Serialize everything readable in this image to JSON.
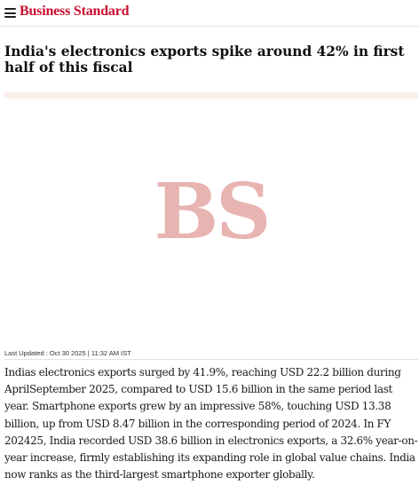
{
  "header": {
    "logo_text": "Business Standard",
    "menu_icon": "hamburger-menu-icon"
  },
  "article": {
    "headline": "India's electronics exports spike around 42% in first half of this fiscal",
    "image_placeholder": "BS",
    "last_updated": "Last Updated : Oct 30 2025 | 11:32 AM IST",
    "body": "Indias electronics exports surged by 41.9%, reaching USD 22.2 billion during AprilSeptember 2025, compared to USD 15.6 billion in the same period last year. Smartphone exports grew by an impressive 58%, touching USD 13.38 billion, up from USD 8.47 billion in the corresponding period of 2024. In FY 202425, India recorded USD 38.6 billion in electronics exports, a 32.6% year-on-year increase, firmly establishing its expanding role in global value chains. India now ranks as the third-largest smartphone exporter globally."
  },
  "colors": {
    "brand_red": "#c8102e",
    "placeholder_logo": "#e8b4b2",
    "placeholder_band": "#fbeee8"
  }
}
